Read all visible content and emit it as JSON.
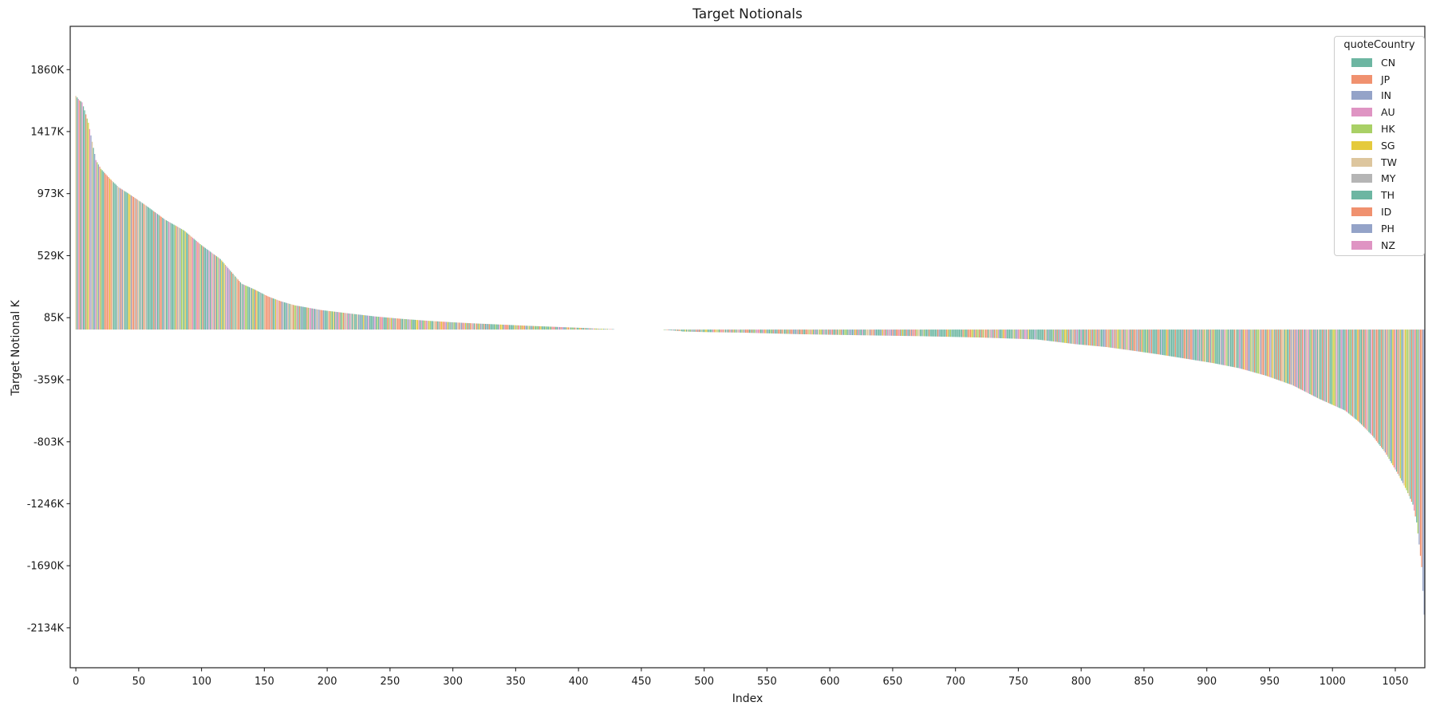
{
  "window": {
    "background_color": "#ffffff",
    "text_color": "#1a1a1a",
    "spine_color": "#222222"
  },
  "chart_data": {
    "type": "bar",
    "title": "Target Notionals",
    "xlabel": "Index",
    "ylabel": "Target Notional K",
    "grid": false,
    "bar_count": 1074,
    "value_unit": "K",
    "xlim": [
      -4.5,
      1073.5
    ],
    "ylim": [
      -2420,
      2170
    ],
    "x_ticks": [
      0,
      50,
      100,
      150,
      200,
      250,
      300,
      350,
      400,
      450,
      500,
      550,
      600,
      650,
      700,
      750,
      800,
      850,
      900,
      950,
      1000,
      1050
    ],
    "y_ticks": [
      {
        "value": 1860,
        "label": "1860K"
      },
      {
        "value": 1417,
        "label": "1417K"
      },
      {
        "value": 973,
        "label": "973K"
      },
      {
        "value": 529,
        "label": "529K"
      },
      {
        "value": 85,
        "label": "85K"
      },
      {
        "value": -359,
        "label": "-359K"
      },
      {
        "value": -803,
        "label": "-803K"
      },
      {
        "value": -1246,
        "label": "-1246K"
      },
      {
        "value": -1690,
        "label": "-1690K"
      },
      {
        "value": -2134,
        "label": "-2134K"
      }
    ],
    "max_value_k": 1672,
    "min_value_k": -2040,
    "description": "Sorted (descending) target notionals per trade index; positive bars decay from ~1672K to 0 near index ~450, near-zero gap until ~465, then negative values grow in magnitude to ~-2040K at the last index.",
    "envelope_points": [
      [
        0,
        1672
      ],
      [
        3,
        1640
      ],
      [
        5,
        1626
      ],
      [
        8,
        1540
      ],
      [
        10,
        1480
      ],
      [
        13,
        1344
      ],
      [
        16,
        1213
      ],
      [
        20,
        1150
      ],
      [
        27,
        1081
      ],
      [
        34,
        1019
      ],
      [
        42,
        973
      ],
      [
        56,
        887
      ],
      [
        71,
        787
      ],
      [
        86,
        710
      ],
      [
        100,
        604
      ],
      [
        115,
        505
      ],
      [
        125,
        400
      ],
      [
        132,
        328
      ],
      [
        142,
        288
      ],
      [
        153,
        237
      ],
      [
        163,
        203
      ],
      [
        174,
        174
      ],
      [
        195,
        140
      ],
      [
        216,
        117
      ],
      [
        238,
        94
      ],
      [
        259,
        77
      ],
      [
        280,
        63
      ],
      [
        300,
        52
      ],
      [
        320,
        43
      ],
      [
        340,
        35
      ],
      [
        360,
        27
      ],
      [
        380,
        20
      ],
      [
        400,
        13
      ],
      [
        412,
        8
      ],
      [
        421,
        5
      ],
      [
        428,
        3
      ],
      [
        440,
        1
      ],
      [
        452,
        0
      ],
      [
        460,
        -1
      ],
      [
        468,
        -3
      ],
      [
        476,
        -7
      ],
      [
        481,
        -11
      ],
      [
        483,
        -14
      ],
      [
        500,
        -18
      ],
      [
        530,
        -22
      ],
      [
        575,
        -33
      ],
      [
        620,
        -40
      ],
      [
        670,
        -47
      ],
      [
        720,
        -57
      ],
      [
        765,
        -71
      ],
      [
        795,
        -104
      ],
      [
        820,
        -125
      ],
      [
        841,
        -151
      ],
      [
        862,
        -178
      ],
      [
        883,
        -208
      ],
      [
        905,
        -240
      ],
      [
        926,
        -277
      ],
      [
        947,
        -330
      ],
      [
        968,
        -397
      ],
      [
        989,
        -494
      ],
      [
        1010,
        -579
      ],
      [
        1021,
        -660
      ],
      [
        1032,
        -762
      ],
      [
        1042,
        -880
      ],
      [
        1053,
        -1047
      ],
      [
        1059,
        -1150
      ],
      [
        1064,
        -1253
      ],
      [
        1067,
        -1380
      ],
      [
        1069,
        -1538
      ],
      [
        1071,
        -1700
      ],
      [
        1072,
        -1870
      ],
      [
        1073,
        -2040
      ]
    ],
    "legend": {
      "title": "quoteCountry",
      "position": "upper right",
      "entries": [
        {
          "label": "CN",
          "color": "#6db6a2",
          "weight": 0.22
        },
        {
          "label": "JP",
          "color": "#f0916f",
          "weight": 0.13
        },
        {
          "label": "IN",
          "color": "#94a3c8",
          "weight": 0.05
        },
        {
          "label": "AU",
          "color": "#df94c3",
          "weight": 0.05
        },
        {
          "label": "HK",
          "color": "#a9d066",
          "weight": 0.08
        },
        {
          "label": "SG",
          "color": "#e5ca3d",
          "weight": 0.05
        },
        {
          "label": "TW",
          "color": "#ddc69e",
          "weight": 0.07
        },
        {
          "label": "MY",
          "color": "#b5b5b5",
          "weight": 0.06
        },
        {
          "label": "TH",
          "color": "#6db6a2",
          "weight": 0.14
        },
        {
          "label": "ID",
          "color": "#f0916f",
          "weight": 0.07
        },
        {
          "label": "PH",
          "color": "#94a3c8",
          "weight": 0.04
        },
        {
          "label": "NZ",
          "color": "#df94c3",
          "weight": 0.04
        }
      ]
    }
  }
}
